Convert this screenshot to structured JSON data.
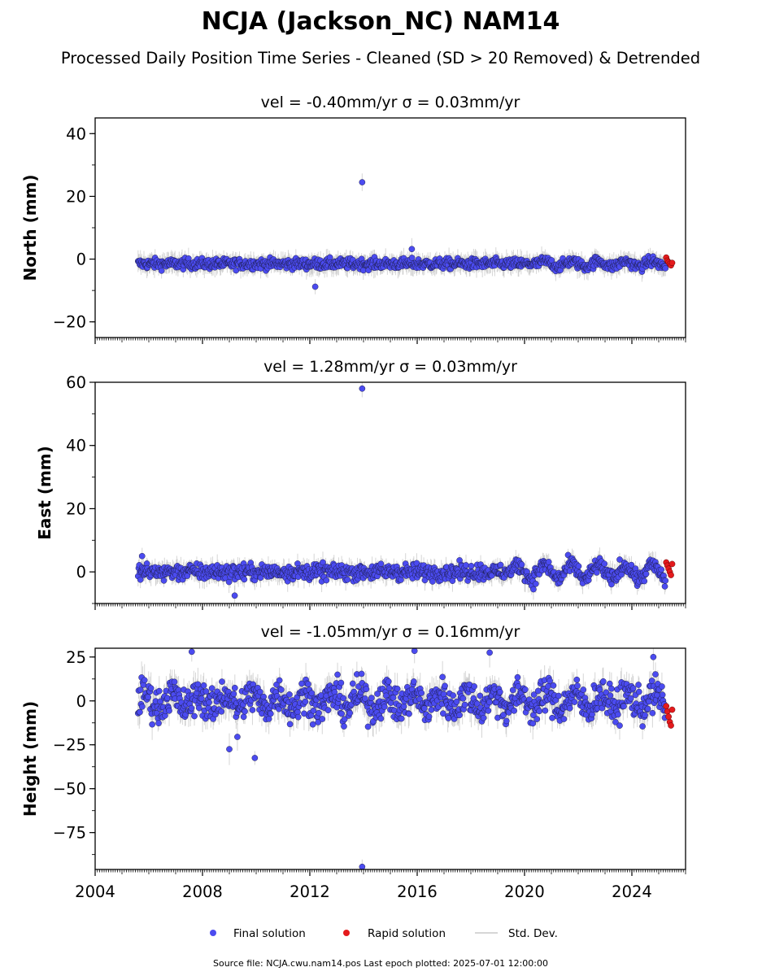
{
  "figure": {
    "title": "NCJA (Jackson_NC) NAM14",
    "subtitle": "Processed Daily Position Time Series - Cleaned (SD > 20 Removed) & Detrended",
    "footer": "Source file: NCJA.cwu.nam14.pos  Last epoch plotted: 2025-07-01 12:00:00"
  },
  "legend": {
    "position": "bottom-center",
    "items": [
      {
        "label": "Final solution",
        "color": "#4b4bf0",
        "marker": "circle"
      },
      {
        "label": "Rapid solution",
        "color": "#e41a1c",
        "marker": "circle"
      },
      {
        "label": "Std. Dev.",
        "color": "#c8c8c8",
        "marker": "line"
      }
    ]
  },
  "chart_data": [
    {
      "type": "scatter",
      "title": "vel = -0.40mm/yr   σ = 0.03mm/yr",
      "xlabel": "",
      "ylabel": "North (mm)",
      "xlim": [
        2004.0,
        2026.0
      ],
      "ylim": [
        -25,
        45
      ],
      "xticks": [
        "2004",
        "2008",
        "2012",
        "2016",
        "2020",
        "2024"
      ],
      "yticks": [
        "−20",
        "0",
        "20",
        "40"
      ],
      "ytick_values": [
        -20,
        0,
        20,
        40
      ],
      "grid": false,
      "series": [
        {
          "name": "Final solution",
          "time_range": [
            2005.6,
            2025.25
          ],
          "typical_value": -1.5,
          "scatter": 1.2,
          "outliers": [
            {
              "x": 2013.95,
              "y": 24.5
            },
            {
              "x": 2012.2,
              "y": -8.8
            },
            {
              "x": 2015.8,
              "y": 3.2
            }
          ]
        },
        {
          "name": "Rapid solution",
          "time_range": [
            2025.28,
            2025.5
          ],
          "values": [
            0.5,
            -0.5,
            -1.0,
            -1.5,
            -2.0,
            -1.2
          ]
        }
      ]
    },
    {
      "type": "scatter",
      "title": "vel = 1.28mm/yr   σ = 0.03mm/yr",
      "xlabel": "",
      "ylabel": "East (mm)",
      "xlim": [
        2004.0,
        2026.0
      ],
      "ylim": [
        -10,
        60
      ],
      "xticks": [
        "2004",
        "2008",
        "2012",
        "2016",
        "2020",
        "2024"
      ],
      "yticks": [
        "0",
        "20",
        "40",
        "60"
      ],
      "ytick_values": [
        0,
        20,
        40,
        60
      ],
      "grid": false,
      "series": [
        {
          "name": "Final solution",
          "time_range": [
            2005.6,
            2025.25
          ],
          "typical_value": 0.0,
          "scatter": 1.8,
          "outliers": [
            {
              "x": 2013.95,
              "y": 58.0
            },
            {
              "x": 2005.75,
              "y": 5.0
            },
            {
              "x": 2009.2,
              "y": -7.5
            }
          ]
        },
        {
          "name": "Rapid solution",
          "time_range": [
            2025.28,
            2025.5
          ],
          "values": [
            3.0,
            2.0,
            1.0,
            0.0,
            -1.0,
            2.5
          ]
        }
      ]
    },
    {
      "type": "scatter",
      "title": "vel = -1.05mm/yr   σ = 0.16mm/yr",
      "xlabel": "",
      "ylabel": "Height (mm)",
      "xlim": [
        2004.0,
        2026.0
      ],
      "ylim": [
        -96,
        30
      ],
      "xticks": [
        "2004",
        "2008",
        "2012",
        "2016",
        "2020",
        "2024"
      ],
      "yticks": [
        "25",
        "0",
        "−25",
        "−50",
        "−75"
      ],
      "ytick_values": [
        25,
        0,
        -25,
        -50,
        -75
      ],
      "grid": false,
      "series": [
        {
          "name": "Final solution",
          "time_range": [
            2005.6,
            2025.25
          ],
          "typical_value": 0.0,
          "scatter": 7.0,
          "outliers": [
            {
              "x": 2013.95,
              "y": -94.5
            },
            {
              "x": 2009.95,
              "y": -32.5
            },
            {
              "x": 2009.0,
              "y": -27.5
            },
            {
              "x": 2009.3,
              "y": -20.5
            },
            {
              "x": 2007.6,
              "y": 28.0
            },
            {
              "x": 2015.9,
              "y": 28.5
            },
            {
              "x": 2018.7,
              "y": 27.5
            },
            {
              "x": 2024.8,
              "y": 25.0
            }
          ]
        },
        {
          "name": "Rapid solution",
          "time_range": [
            2025.28,
            2025.5
          ],
          "values": [
            -3.0,
            -6.0,
            -9.0,
            -12.0,
            -14.0,
            -5.0
          ]
        }
      ]
    }
  ]
}
